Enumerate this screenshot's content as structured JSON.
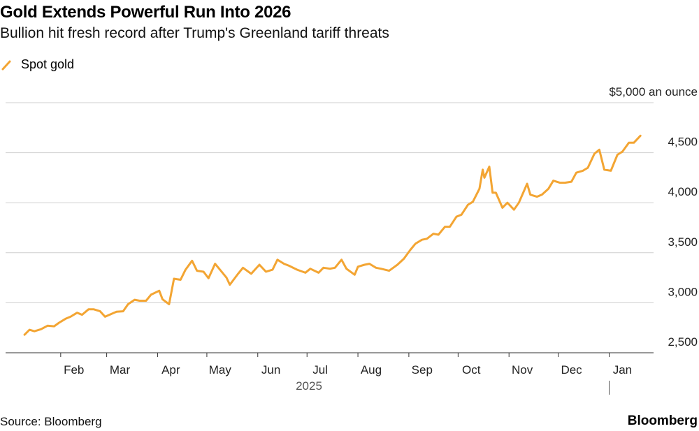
{
  "header": {
    "title": "Gold Extends Powerful Run Into 2026",
    "subtitle": "Bullion hit fresh record after Trump's Greenland tariff threats"
  },
  "legend": {
    "label": "Spot gold",
    "color": "#f3a533"
  },
  "footer": {
    "source": "Source: Bloomberg",
    "brand": "Bloomberg"
  },
  "chart_data": {
    "type": "line",
    "title": "Gold Extends Powerful Run Into 2026",
    "subtitle": "Bullion hit fresh record after Trump's Greenland tariff threats",
    "unit_label": "$5,000 an ounce",
    "x_ticks": [
      "Feb",
      "Mar",
      "Apr",
      "May",
      "Jun",
      "Jul",
      "Aug",
      "Sep",
      "Oct",
      "Nov",
      "Dec",
      "Jan"
    ],
    "x_year_label": "2025",
    "y_ticks": [
      "2,500",
      "3,000",
      "3,500",
      "4,000",
      "4,500"
    ],
    "ylim": [
      2500,
      5000
    ],
    "grid": true,
    "legend_position": "top-left",
    "series": [
      {
        "name": "Spot gold",
        "color": "#f3a533",
        "points": [
          [
            "2025-01-10",
            2680
          ],
          [
            "2025-01-13",
            2730
          ],
          [
            "2025-01-16",
            2715
          ],
          [
            "2025-01-20",
            2735
          ],
          [
            "2025-01-24",
            2770
          ],
          [
            "2025-01-28",
            2765
          ],
          [
            "2025-01-31",
            2800
          ],
          [
            "2025-02-04",
            2840
          ],
          [
            "2025-02-07",
            2860
          ],
          [
            "2025-02-11",
            2900
          ],
          [
            "2025-02-14",
            2880
          ],
          [
            "2025-02-18",
            2935
          ],
          [
            "2025-02-21",
            2935
          ],
          [
            "2025-02-25",
            2915
          ],
          [
            "2025-02-28",
            2860
          ],
          [
            "2025-03-04",
            2890
          ],
          [
            "2025-03-07",
            2910
          ],
          [
            "2025-03-11",
            2915
          ],
          [
            "2025-03-14",
            2985
          ],
          [
            "2025-03-18",
            3030
          ],
          [
            "2025-03-21",
            3020
          ],
          [
            "2025-03-25",
            3020
          ],
          [
            "2025-03-28",
            3080
          ],
          [
            "2025-04-02",
            3120
          ],
          [
            "2025-04-04",
            3035
          ],
          [
            "2025-04-08",
            2985
          ],
          [
            "2025-04-11",
            3240
          ],
          [
            "2025-04-15",
            3230
          ],
          [
            "2025-04-18",
            3330
          ],
          [
            "2025-04-22",
            3420
          ],
          [
            "2025-04-25",
            3320
          ],
          [
            "2025-04-29",
            3310
          ],
          [
            "2025-05-02",
            3245
          ],
          [
            "2025-05-06",
            3390
          ],
          [
            "2025-05-09",
            3330
          ],
          [
            "2025-05-13",
            3250
          ],
          [
            "2025-05-15",
            3180
          ],
          [
            "2025-05-20",
            3290
          ],
          [
            "2025-05-23",
            3350
          ],
          [
            "2025-05-28",
            3290
          ],
          [
            "2025-06-02",
            3380
          ],
          [
            "2025-06-06",
            3310
          ],
          [
            "2025-06-10",
            3330
          ],
          [
            "2025-06-13",
            3430
          ],
          [
            "2025-06-17",
            3390
          ],
          [
            "2025-06-20",
            3370
          ],
          [
            "2025-06-25",
            3330
          ],
          [
            "2025-06-30",
            3300
          ],
          [
            "2025-07-03",
            3340
          ],
          [
            "2025-07-08",
            3300
          ],
          [
            "2025-07-11",
            3350
          ],
          [
            "2025-07-15",
            3340
          ],
          [
            "2025-07-18",
            3350
          ],
          [
            "2025-07-22",
            3430
          ],
          [
            "2025-07-25",
            3340
          ],
          [
            "2025-07-30",
            3280
          ],
          [
            "2025-08-01",
            3360
          ],
          [
            "2025-08-05",
            3380
          ],
          [
            "2025-08-08",
            3390
          ],
          [
            "2025-08-12",
            3350
          ],
          [
            "2025-08-15",
            3340
          ],
          [
            "2025-08-20",
            3320
          ],
          [
            "2025-08-25",
            3380
          ],
          [
            "2025-08-29",
            3440
          ],
          [
            "2025-09-02",
            3530
          ],
          [
            "2025-09-05",
            3590
          ],
          [
            "2025-09-09",
            3630
          ],
          [
            "2025-09-12",
            3640
          ],
          [
            "2025-09-16",
            3690
          ],
          [
            "2025-09-19",
            3680
          ],
          [
            "2025-09-23",
            3760
          ],
          [
            "2025-09-26",
            3760
          ],
          [
            "2025-09-30",
            3860
          ],
          [
            "2025-10-03",
            3880
          ],
          [
            "2025-10-07",
            3980
          ],
          [
            "2025-10-10",
            4010
          ],
          [
            "2025-10-14",
            4140
          ],
          [
            "2025-10-16",
            4330
          ],
          [
            "2025-10-17",
            4250
          ],
          [
            "2025-10-20",
            4360
          ],
          [
            "2025-10-22",
            4100
          ],
          [
            "2025-10-24",
            4100
          ],
          [
            "2025-10-28",
            3950
          ],
          [
            "2025-10-31",
            4000
          ],
          [
            "2025-11-04",
            3930
          ],
          [
            "2025-11-07",
            4000
          ],
          [
            "2025-11-12",
            4190
          ],
          [
            "2025-11-14",
            4080
          ],
          [
            "2025-11-18",
            4060
          ],
          [
            "2025-11-21",
            4080
          ],
          [
            "2025-11-25",
            4140
          ],
          [
            "2025-11-28",
            4220
          ],
          [
            "2025-12-02",
            4200
          ],
          [
            "2025-12-05",
            4200
          ],
          [
            "2025-12-09",
            4210
          ],
          [
            "2025-12-12",
            4300
          ],
          [
            "2025-12-16",
            4320
          ],
          [
            "2025-12-19",
            4350
          ],
          [
            "2025-12-23",
            4490
          ],
          [
            "2025-12-26",
            4530
          ],
          [
            "2025-12-29",
            4330
          ],
          [
            "2026-01-02",
            4320
          ],
          [
            "2026-01-06",
            4480
          ],
          [
            "2026-01-09",
            4510
          ],
          [
            "2026-01-13",
            4600
          ],
          [
            "2026-01-16",
            4600
          ],
          [
            "2026-01-20",
            4670
          ]
        ]
      }
    ]
  }
}
